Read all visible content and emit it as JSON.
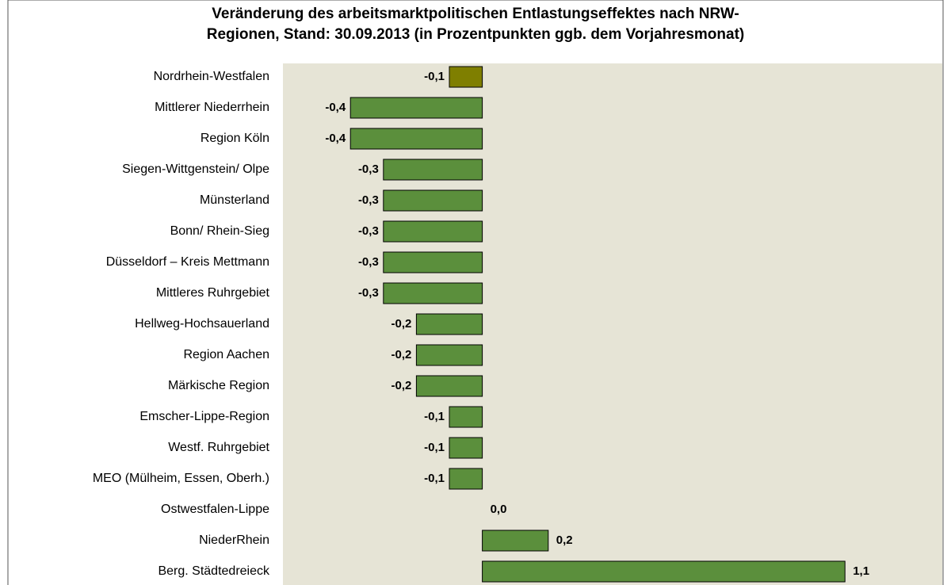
{
  "chart_data": {
    "type": "hbar",
    "title": [
      "Veränderung des arbeitsmarktpolitischen Entlastungseffektes nach NRW-",
      "Regionen, Stand: 30.09.2013 (in Prozentpunkten ggb. dem Vorjahresmonat)"
    ],
    "categories": [
      "Nordrhein-Westfalen",
      "Mittlerer Niederrhein",
      "Region Köln",
      "Siegen-Wittgenstein/ Olpe",
      "Münsterland",
      "Bonn/ Rhein-Sieg",
      "Düsseldorf – Kreis Mettmann",
      "Mittleres Ruhrgebiet",
      "Hellweg-Hochsauerland",
      "Region Aachen",
      "Märkische Region",
      "Emscher-Lippe-Region",
      "Westf. Ruhrgebiet",
      "MEO (Mülheim, Essen, Oberh.)",
      "Ostwestfalen-Lippe",
      "NiederRhein",
      "Berg. Städtedreieck"
    ],
    "values": [
      -0.1,
      -0.4,
      -0.4,
      -0.3,
      -0.3,
      -0.3,
      -0.3,
      -0.3,
      -0.2,
      -0.2,
      -0.2,
      -0.1,
      -0.1,
      -0.1,
      0.0,
      0.2,
      1.1
    ],
    "value_labels": [
      "-0,1",
      "-0,4",
      "-0,4",
      "-0,3",
      "-0,3",
      "-0,3",
      "-0,3",
      "-0,3",
      "-0,2",
      "-0,2",
      "-0,2",
      "-0,1",
      "-0,1",
      "-0,1",
      "0,0",
      "0,2",
      "1,1"
    ],
    "colors": [
      "#7f7f00",
      "#5b8f3c",
      "#5b8f3c",
      "#5b8f3c",
      "#5b8f3c",
      "#5b8f3c",
      "#5b8f3c",
      "#5b8f3c",
      "#5b8f3c",
      "#5b8f3c",
      "#5b8f3c",
      "#5b8f3c",
      "#5b8f3c",
      "#5b8f3c",
      "#5b8f3c",
      "#5b8f3c",
      "#5b8f3c"
    ],
    "xlim": [
      -0.6,
      1.4
    ]
  }
}
